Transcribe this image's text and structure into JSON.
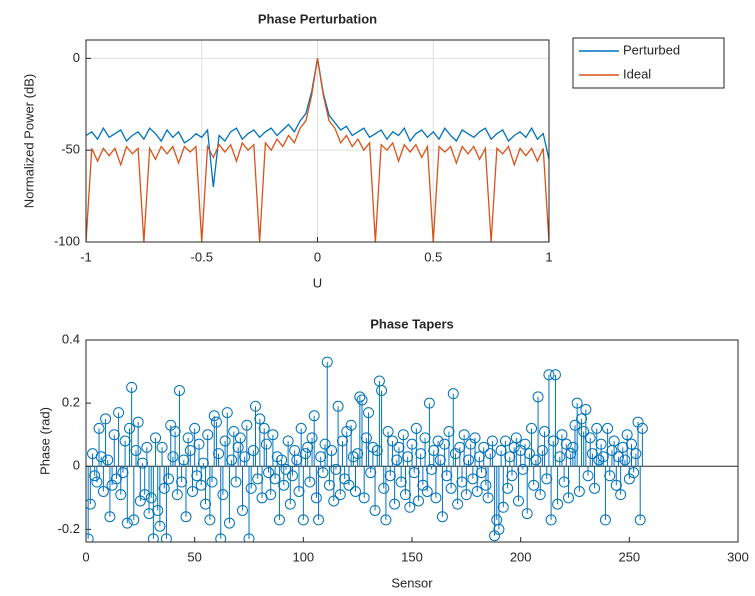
{
  "chart_data": [
    {
      "type": "line",
      "title": "Phase Perturbation",
      "xlabel": "U",
      "ylabel": "Normalized Power (dB)",
      "x": [
        -1,
        -0.975,
        -0.95,
        -0.925,
        -0.9,
        -0.875,
        -0.85,
        -0.825,
        -0.8,
        -0.775,
        -0.75,
        -0.725,
        -0.7,
        -0.675,
        -0.65,
        -0.625,
        -0.6,
        -0.575,
        -0.55,
        -0.525,
        -0.5,
        -0.475,
        -0.45,
        -0.425,
        -0.4,
        -0.375,
        -0.35,
        -0.325,
        -0.3,
        -0.275,
        -0.25,
        -0.225,
        -0.2,
        -0.175,
        -0.15,
        -0.125,
        -0.1,
        -0.075,
        -0.05,
        -0.025,
        0,
        0.025,
        0.05,
        0.075,
        0.1,
        0.125,
        0.15,
        0.175,
        0.2,
        0.225,
        0.25,
        0.275,
        0.3,
        0.325,
        0.35,
        0.375,
        0.4,
        0.425,
        0.45,
        0.475,
        0.5,
        0.525,
        0.55,
        0.575,
        0.6,
        0.625,
        0.65,
        0.675,
        0.7,
        0.725,
        0.75,
        0.775,
        0.8,
        0.825,
        0.85,
        0.875,
        0.9,
        0.925,
        0.95,
        0.975,
        1
      ],
      "series": [
        {
          "name": "Perturbed",
          "color": "#0072bd",
          "values": [
            -42,
            -40,
            -44,
            -38,
            -43,
            -41,
            -39,
            -45,
            -42,
            -40,
            -44,
            -38,
            -41,
            -45,
            -39,
            -43,
            -40,
            -46,
            -44,
            -41,
            -43,
            -39,
            -70,
            -42,
            -45,
            -40,
            -38,
            -44,
            -41,
            -39,
            -43,
            -40,
            -38,
            -42,
            -39,
            -36,
            -40,
            -34,
            -30,
            -18,
            0,
            -19,
            -31,
            -35,
            -39,
            -37,
            -42,
            -40,
            -38,
            -43,
            -41,
            -39,
            -44,
            -40,
            -42,
            -38,
            -45,
            -41,
            -39,
            -43,
            -40,
            -44,
            -38,
            -42,
            -45,
            -39,
            -41,
            -43,
            -40,
            -38,
            -44,
            -41,
            -39,
            -45,
            -42,
            -40,
            -43,
            -38,
            -44,
            -41,
            -55
          ]
        },
        {
          "name": "Ideal",
          "color": "#d95319",
          "values": [
            -100,
            -49,
            -56,
            -49,
            -53,
            -49,
            -58,
            -48,
            -52,
            -49,
            -100,
            -49,
            -55,
            -48,
            -52,
            -48,
            -57,
            -48,
            -51,
            -48,
            -100,
            -48,
            -54,
            -47,
            -51,
            -47,
            -56,
            -46,
            -50,
            -47,
            -100,
            -46,
            -50,
            -44,
            -48,
            -42,
            -46,
            -38,
            -34,
            -20,
            0,
            -20,
            -34,
            -38,
            -46,
            -42,
            -48,
            -44,
            -50,
            -46,
            -100,
            -47,
            -50,
            -46,
            -56,
            -47,
            -51,
            -47,
            -54,
            -48,
            -100,
            -48,
            -51,
            -48,
            -57,
            -48,
            -52,
            -48,
            -55,
            -49,
            -100,
            -49,
            -52,
            -48,
            -58,
            -49,
            -53,
            -49,
            -56,
            -49,
            -100
          ]
        }
      ],
      "xlim": [
        -1,
        1
      ],
      "ylim": [
        -100,
        10
      ],
      "xticks": [
        -1,
        -0.5,
        0,
        0.5,
        1
      ],
      "yticks": [
        -100,
        -50,
        0
      ],
      "grid": true,
      "legend": "outside-right"
    },
    {
      "type": "stem",
      "title": "Phase Tapers",
      "xlabel": "Sensor",
      "ylabel": "Phase (rad)",
      "color": "#0072bd",
      "x": [
        1,
        2,
        3,
        4,
        5,
        6,
        7,
        8,
        9,
        10,
        11,
        12,
        13,
        14,
        15,
        16,
        17,
        18,
        19,
        20,
        21,
        22,
        23,
        24,
        25,
        26,
        27,
        28,
        29,
        30,
        31,
        32,
        33,
        34,
        35,
        36,
        37,
        38,
        39,
        40,
        41,
        42,
        43,
        44,
        45,
        46,
        47,
        48,
        49,
        50,
        51,
        52,
        53,
        54,
        55,
        56,
        57,
        58,
        59,
        60,
        61,
        62,
        63,
        64,
        65,
        66,
        67,
        68,
        69,
        70,
        71,
        72,
        73,
        74,
        75,
        76,
        77,
        78,
        79,
        80,
        81,
        82,
        83,
        84,
        85,
        86,
        87,
        88,
        89,
        90,
        91,
        92,
        93,
        94,
        95,
        96,
        97,
        98,
        99,
        100,
        101,
        102,
        103,
        104,
        105,
        106,
        107,
        108,
        109,
        110,
        111,
        112,
        113,
        114,
        115,
        116,
        117,
        118,
        119,
        120,
        121,
        122,
        123,
        124,
        125,
        126,
        127,
        128,
        129,
        130,
        131,
        132,
        133,
        134,
        135,
        136,
        137,
        138,
        139,
        140,
        141,
        142,
        143,
        144,
        145,
        146,
        147,
        148,
        149,
        150,
        151,
        152,
        153,
        154,
        155,
        156,
        157,
        158,
        159,
        160,
        161,
        162,
        163,
        164,
        165,
        166,
        167,
        168,
        169,
        170,
        171,
        172,
        173,
        174,
        175,
        176,
        177,
        178,
        179,
        180,
        181,
        182,
        183,
        184,
        185,
        186,
        187,
        188,
        189,
        190,
        191,
        192,
        193,
        194,
        195,
        196,
        197,
        198,
        199,
        200,
        201,
        202,
        203,
        204,
        205,
        206,
        207,
        208,
        209,
        210,
        211,
        212,
        213,
        214,
        215,
        216,
        217,
        218,
        219,
        220,
        221,
        222,
        223,
        224,
        225,
        226,
        227,
        228,
        229,
        230,
        231,
        232,
        233,
        234,
        235,
        236,
        237,
        238,
        239,
        240,
        241,
        242,
        243,
        244,
        245,
        246,
        247,
        248,
        249,
        250,
        251,
        252,
        253,
        254,
        255,
        256
      ],
      "values": [
        -0.23,
        -0.12,
        0.04,
        -0.03,
        -0.05,
        0.12,
        0.03,
        -0.08,
        0.15,
        0.02,
        -0.16,
        -0.06,
        0.1,
        -0.04,
        0.17,
        -0.09,
        -0.02,
        0.08,
        -0.18,
        0.12,
        0.25,
        -0.17,
        0.05,
        0.14,
        -0.11,
        0.01,
        -0.09,
        0.06,
        -0.15,
        -0.1,
        -0.23,
        0.09,
        -0.14,
        -0.19,
        0.06,
        -0.07,
        -0.23,
        -0.04,
        0.13,
        0.03,
        0.11,
        -0.09,
        0.24,
        -0.05,
        0.02,
        -0.16,
        0.09,
        0.05,
        -0.08,
        0.12,
        -0.03,
        0.07,
        -0.06,
        0.01,
        -0.12,
        0.1,
        -0.17,
        -0.05,
        0.16,
        0.14,
        0.04,
        -0.23,
        -0.09,
        0.08,
        0.17,
        -0.18,
        0.02,
        0.11,
        -0.05,
        0.06,
        0.09,
        -0.14,
        0.03,
        0.13,
        -0.23,
        -0.07,
        0.05,
        0.19,
        -0.04,
        0.15,
        -0.1,
        0.12,
        0.07,
        -0.02,
        -0.09,
        0.1,
        -0.04,
        0.03,
        -0.17,
        0.02,
        -0.06,
        -0.01,
        0.08,
        -0.12,
        -0.03,
        0.05,
        0.02,
        -0.08,
        0.12,
        -0.17,
        0.04,
        0.06,
        -0.05,
        0.09,
        0.16,
        -0.1,
        -0.17,
        0.03,
        -0.02,
        0.07,
        0.33,
        -0.06,
        0.05,
        -0.11,
        -0.01,
        0.19,
        -0.09,
        0.08,
        -0.04,
        0.11,
        -0.06,
        0.13,
        0.03,
        -0.08,
        0.04,
        0.22,
        0.21,
        -0.1,
        0.09,
        0.17,
        -0.02,
        0.06,
        -0.14,
        0.05,
        0.27,
        0.24,
        -0.07,
        -0.17,
        0.11,
        -0.03,
        0.08,
        -0.12,
        0.02,
        0.06,
        -0.05,
        0.1,
        -0.09,
        0.03,
        -0.13,
        0.07,
        -0.02,
        0.12,
        -0.11,
        0.04,
        -0.06,
        0.09,
        -0.08,
        0.2,
        -0.01,
        0.05,
        -0.1,
        0.08,
        0.02,
        -0.16,
        0.07,
        -0.03,
        0.11,
        -0.07,
        0.23,
        0.04,
        -0.12,
        0.06,
        -0.05,
        0.1,
        -0.09,
        0.02,
        0.07,
        -0.04,
        0.09,
        -0.08,
        0.03,
        -0.02,
        0.06,
        -0.06,
        -0.1,
        0.04,
        0.08,
        -0.22,
        -0.17,
        -0.2,
        0.05,
        -0.13,
        0.08,
        -0.07,
        0.03,
        -0.03,
        0.06,
        0.09,
        -0.11,
        0.05,
        -0.01,
        0.07,
        -0.15,
        0.04,
        0.12,
        -0.06,
        0.02,
        0.22,
        -0.09,
        0.05,
        0.11,
        -0.04,
        0.29,
        -0.17,
        0.08,
        0.29,
        -0.12,
        0.03,
        0.1,
        -0.05,
        0.07,
        -0.1,
        0.04,
        0.06,
        0.13,
        0.2,
        -0.08,
        0.15,
        0.11,
        0.18,
        -0.03,
        0.09,
        0.04,
        -0.07,
        0.12,
        0.02,
        0.07,
        0.03,
        -0.17,
        0.12,
        -0.03,
        0.05,
        0.08,
        -0.06,
        0.03,
        -0.09,
        0.06,
        0.02,
        0.1,
        -0.04,
        0.07,
        -0.02,
        0.04,
        0.14,
        -0.17,
        0.12
      ],
      "xlim": [
        0,
        300
      ],
      "ylim": [
        -0.24,
        0.4
      ],
      "xticks": [
        0,
        50,
        100,
        150,
        200,
        250,
        300
      ],
      "yticks": [
        -0.2,
        0,
        0.2,
        0.4
      ],
      "grid": false
    }
  ]
}
